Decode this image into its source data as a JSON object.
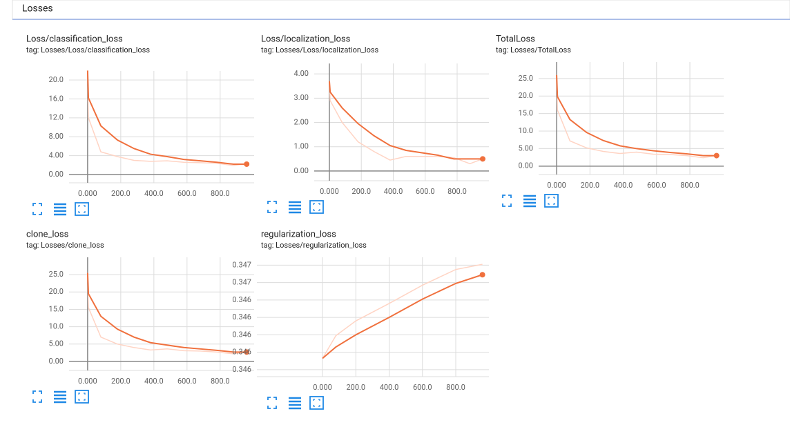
{
  "header": {
    "title": "Losses"
  },
  "chart_data": [
    {
      "type": "line",
      "title": "Loss/classification_loss",
      "subtitle": "tag: Losses/Loss/classification_loss",
      "x": [
        0,
        5,
        80,
        180,
        280,
        380,
        480,
        580,
        680,
        780,
        880,
        960
      ],
      "series": [
        {
          "color": "#ffd4c4",
          "values": [
            22,
            12,
            4.8,
            3.8,
            3.0,
            2.8,
            2.9,
            2.6,
            2.5,
            2.4,
            1.9,
            2.3
          ]
        },
        {
          "color": "#f0703d",
          "values": [
            22,
            16.2,
            10.3,
            7.3,
            5.5,
            4.3,
            3.8,
            3.2,
            2.9,
            2.6,
            2.2,
            2.2
          ]
        }
      ],
      "xlim": [
        -112,
        1005
      ],
      "xticks": [
        {
          "value": 0,
          "label": "0.000"
        },
        {
          "value": 200,
          "label": "200.0"
        },
        {
          "value": 400,
          "label": "400.0"
        },
        {
          "value": 600,
          "label": "600.0"
        },
        {
          "value": 800,
          "label": "800.0"
        }
      ],
      "ylim": [
        -1.75,
        21.9
      ],
      "yticks": [
        {
          "value": 0,
          "label": "0.00"
        },
        {
          "value": 4,
          "label": "4.00"
        },
        {
          "value": 8,
          "label": "8.00"
        },
        {
          "value": 12,
          "label": "12.0"
        },
        {
          "value": 16,
          "label": "16.0"
        },
        {
          "value": 20,
          "label": "20.0"
        }
      ],
      "grid": true
    },
    {
      "type": "line",
      "title": "Loss/localization_loss",
      "subtitle": "tag: Losses/Loss/localization_loss",
      "x": [
        0,
        5,
        80,
        180,
        280,
        380,
        480,
        580,
        680,
        780,
        880,
        960
      ],
      "series": [
        {
          "color": "#ffd4c4",
          "values": [
            3.7,
            2.9,
            2.0,
            1.2,
            0.8,
            0.45,
            0.6,
            0.6,
            0.6,
            0.55,
            0.3,
            0.5
          ]
        },
        {
          "color": "#f0703d",
          "values": [
            3.7,
            3.25,
            2.6,
            1.95,
            1.45,
            1.05,
            0.85,
            0.75,
            0.65,
            0.5,
            0.5,
            0.5
          ]
        }
      ],
      "xlim": [
        -95,
        999
      ],
      "xticks": [
        {
          "value": 0,
          "label": "0.000"
        },
        {
          "value": 200,
          "label": "200.0"
        },
        {
          "value": 400,
          "label": "400.0"
        },
        {
          "value": 600,
          "label": "600.0"
        },
        {
          "value": 800,
          "label": "800.0"
        }
      ],
      "ylim": [
        -0.4,
        4.43
      ],
      "yticks": [
        {
          "value": 0,
          "label": "0.00"
        },
        {
          "value": 1,
          "label": "1.00"
        },
        {
          "value": 2,
          "label": "2.00"
        },
        {
          "value": 3,
          "label": "3.00"
        },
        {
          "value": 4,
          "label": "4.00"
        }
      ],
      "grid": true
    },
    {
      "type": "line",
      "title": "TotalLoss",
      "subtitle": "tag: Losses/TotalLoss",
      "x": [
        0,
        5,
        80,
        180,
        280,
        380,
        480,
        580,
        680,
        780,
        880,
        960
      ],
      "series": [
        {
          "color": "#ffd4c4",
          "values": [
            26,
            16,
            7.2,
            5.2,
            4.2,
            3.6,
            4.0,
            3.4,
            3.3,
            3.0,
            2.4,
            3.0
          ]
        },
        {
          "color": "#f0703d",
          "values": [
            26,
            19.8,
            13.3,
            9.6,
            7.3,
            5.8,
            5.0,
            4.4,
            3.9,
            3.5,
            3.0,
            3.0
          ]
        }
      ],
      "xlim": [
        -108,
        1003
      ],
      "xticks": [
        {
          "value": 0,
          "label": "0.000"
        },
        {
          "value": 200,
          "label": "200.0"
        },
        {
          "value": 400,
          "label": "400.0"
        },
        {
          "value": 600,
          "label": "600.0"
        },
        {
          "value": 800,
          "label": "800.0"
        }
      ],
      "ylim": [
        -2.4,
        29.7
      ],
      "yticks": [
        {
          "value": 0,
          "label": "0.00"
        },
        {
          "value": 5,
          "label": "5.00"
        },
        {
          "value": 10,
          "label": "10.0"
        },
        {
          "value": 15,
          "label": "15.0"
        },
        {
          "value": 20,
          "label": "20.0"
        },
        {
          "value": 25,
          "label": "25.0"
        }
      ],
      "grid": true
    },
    {
      "type": "line",
      "title": "clone_loss",
      "subtitle": "tag: Losses/clone_loss",
      "x": [
        0,
        5,
        80,
        180,
        280,
        380,
        480,
        580,
        680,
        780,
        880,
        960
      ],
      "series": [
        {
          "color": "#ffd4c4",
          "values": [
            25.5,
            15.5,
            7,
            5,
            4,
            3.3,
            3.6,
            3.1,
            3.0,
            2.7,
            2.2,
            2.7
          ]
        },
        {
          "color": "#f0703d",
          "values": [
            25.5,
            19.5,
            13,
            9.3,
            7.0,
            5.4,
            4.7,
            4.0,
            3.6,
            3.2,
            2.7,
            2.7
          ]
        }
      ],
      "xlim": [
        -112,
        1005
      ],
      "xticks": [
        {
          "value": 0,
          "label": "0.000"
        },
        {
          "value": 200,
          "label": "200.0"
        },
        {
          "value": 400,
          "label": "400.0"
        },
        {
          "value": 600,
          "label": "600.0"
        },
        {
          "value": 800,
          "label": "800.0"
        }
      ],
      "ylim": [
        -2.6,
        30
      ],
      "yticks": [
        {
          "value": 0,
          "label": "0.00"
        },
        {
          "value": 5,
          "label": "5.00"
        },
        {
          "value": 10,
          "label": "10.0"
        },
        {
          "value": 15,
          "label": "15.0"
        },
        {
          "value": 20,
          "label": "20.0"
        },
        {
          "value": 25,
          "label": "25.0"
        }
      ],
      "grid": true
    },
    {
      "type": "line",
      "title": "regularization_loss",
      "subtitle": "tag: Losses/regularization_loss",
      "x": [
        0,
        80,
        200,
        400,
        600,
        800,
        960
      ],
      "series": [
        {
          "color": "#ffd4c4",
          "values": [
            0.34573,
            0.34599,
            0.34616,
            0.34636,
            0.34657,
            0.34675,
            0.34681
          ]
        },
        {
          "color": "#f0703d",
          "values": [
            0.34573,
            0.34586,
            0.346,
            0.3462,
            0.34641,
            0.34659,
            0.34669
          ]
        }
      ],
      "xlim": [
        -394,
        999
      ],
      "xticks": [
        {
          "value": 0,
          "label": "0.000"
        },
        {
          "value": 200,
          "label": "200.0"
        },
        {
          "value": 400,
          "label": "400.0"
        },
        {
          "value": 600,
          "label": "600.0"
        },
        {
          "value": 800,
          "label": "800.0"
        }
      ],
      "ylim": [
        0.34552,
        0.34689
      ],
      "yticks": [
        {
          "value": 0.3456,
          "label": "0.346"
        },
        {
          "value": 0.3458,
          "label": "0.346"
        },
        {
          "value": 0.346,
          "label": "0.346"
        },
        {
          "value": 0.3462,
          "label": "0.346"
        },
        {
          "value": 0.3464,
          "label": "0.346"
        },
        {
          "value": 0.3466,
          "label": "0.347"
        },
        {
          "value": 0.3468,
          "label": "0.347"
        }
      ],
      "grid": true
    }
  ]
}
